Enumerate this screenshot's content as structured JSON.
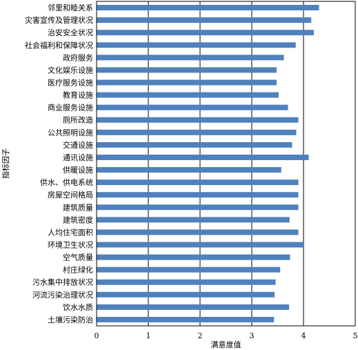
{
  "chart_data": {
    "type": "bar",
    "orientation": "horizontal",
    "xlabel": "满意度值",
    "ylabel": "指标因子",
    "xlim": [
      0,
      5
    ],
    "xticks": [
      "0",
      "1",
      "2",
      "3",
      "4",
      "5"
    ],
    "grid": "vertical",
    "bar_color": "#4f81bd",
    "categories": [
      "邻里和睦关系",
      "灾害宣传及管理状况",
      "治安安全状况",
      "社会福利和保障状况",
      "政府服务",
      "文化娱乐设施",
      "医疗服务设施",
      "教育设施",
      "商业服务设施",
      "厕所改造",
      "公共照明设施",
      "交通设施",
      "通讯设施",
      "供暖设施",
      "供水、供电系统",
      "房屋空间格局",
      "建筑质量",
      "建筑密度",
      "人均住宅面积",
      "环境卫生状况",
      "空气质量",
      "村庄绿化",
      "污水集中排放状况",
      "河流污染治理状况",
      "饮水水质",
      "土壤污染防治"
    ],
    "values": [
      4.3,
      4.15,
      4.2,
      3.85,
      3.62,
      3.48,
      3.48,
      3.52,
      3.7,
      3.9,
      3.86,
      3.78,
      4.1,
      3.57,
      3.9,
      3.9,
      3.9,
      3.73,
      3.9,
      4.0,
      3.74,
      3.55,
      3.46,
      3.44,
      3.72,
      3.43
    ]
  }
}
